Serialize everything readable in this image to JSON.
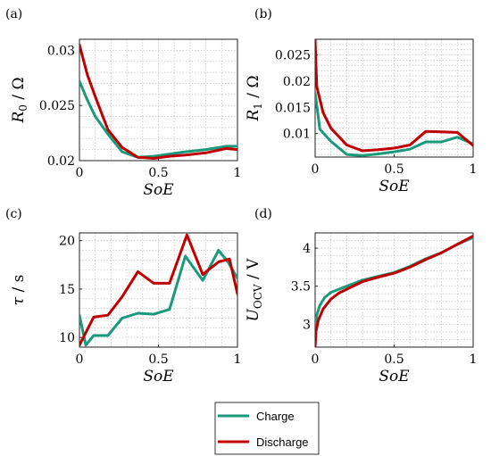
{
  "colors": {
    "charge": "#1a9a7a",
    "discharge": "#c00000",
    "grid": "#bbbbbb"
  },
  "legend": {
    "placement": "bottom-center",
    "entries": [
      {
        "name": "Charge",
        "color": "#1a9a7a"
      },
      {
        "name": "Discharge",
        "color": "#c00000"
      }
    ]
  },
  "chart_data": [
    {
      "panel": "(a)",
      "type": "line",
      "xlabel": "SoE",
      "ylabel_main": "R",
      "ylabel_sub": "0",
      "ylabel_unit": " / Ω",
      "xlim": [
        0,
        1
      ],
      "ylim": [
        0.02,
        0.031
      ],
      "grid": true,
      "xticks": [
        {
          "v": 0,
          "t": "0"
        },
        {
          "v": 0.5,
          "t": "0.5"
        },
        {
          "v": 1,
          "t": "1"
        }
      ],
      "yticks": [
        {
          "v": 0.02,
          "t": "0.02"
        },
        {
          "v": 0.025,
          "t": "0.025"
        },
        {
          "v": 0.03,
          "t": "0.03"
        }
      ],
      "series": [
        {
          "name": "Charge",
          "x": [
            0,
            0.05,
            0.1,
            0.18,
            0.27,
            0.37,
            0.47,
            0.57,
            0.67,
            0.8,
            0.93,
            1.0
          ],
          "y": [
            0.0272,
            0.0255,
            0.024,
            0.0224,
            0.0208,
            0.0203,
            0.0204,
            0.0206,
            0.0208,
            0.021,
            0.0213,
            0.0213
          ]
        },
        {
          "name": "Discharge",
          "x": [
            0,
            0.05,
            0.1,
            0.18,
            0.27,
            0.37,
            0.47,
            0.57,
            0.67,
            0.8,
            0.93,
            1.0
          ],
          "y": [
            0.0305,
            0.0278,
            0.0258,
            0.0228,
            0.0212,
            0.0203,
            0.0202,
            0.0204,
            0.0205,
            0.0207,
            0.0211,
            0.021
          ]
        }
      ]
    },
    {
      "panel": "(b)",
      "type": "line",
      "xlabel": "SoE",
      "ylabel_main": "R",
      "ylabel_sub": "1",
      "ylabel_unit": " / Ω",
      "xlim": [
        0,
        1
      ],
      "ylim": [
        0.0055,
        0.028
      ],
      "grid": true,
      "xticks": [
        {
          "v": 0,
          "t": "0"
        },
        {
          "v": 0.5,
          "t": "0.5"
        },
        {
          "v": 1,
          "t": "1"
        }
      ],
      "yticks": [
        {
          "v": 0.01,
          "t": "0.01"
        },
        {
          "v": 0.015,
          "t": "0.015"
        },
        {
          "v": 0.02,
          "t": "0.02"
        },
        {
          "v": 0.025,
          "t": "0.025"
        }
      ],
      "series": [
        {
          "name": "Charge",
          "x": [
            0,
            0.03,
            0.1,
            0.2,
            0.3,
            0.4,
            0.5,
            0.6,
            0.7,
            0.8,
            0.9,
            1.0
          ],
          "y": [
            0.0178,
            0.0108,
            0.0085,
            0.006,
            0.0058,
            0.0061,
            0.0065,
            0.007,
            0.0084,
            0.0084,
            0.0093,
            0.008
          ]
        },
        {
          "name": "Discharge",
          "x": [
            0,
            0.01,
            0.05,
            0.1,
            0.2,
            0.3,
            0.4,
            0.5,
            0.6,
            0.7,
            0.8,
            0.9,
            1.0
          ],
          "y": [
            0.028,
            0.019,
            0.014,
            0.011,
            0.0078,
            0.0067,
            0.0069,
            0.0072,
            0.0078,
            0.0104,
            0.0103,
            0.0102,
            0.0077
          ]
        }
      ]
    },
    {
      "panel": "(c)",
      "type": "line",
      "xlabel": "SoE",
      "ylabel_main": "τ",
      "ylabel_sub": "",
      "ylabel_unit": " / s",
      "xlim": [
        0,
        1
      ],
      "ylim": [
        9,
        20.8
      ],
      "grid": true,
      "xticks": [
        {
          "v": 0,
          "t": "0"
        },
        {
          "v": 0.5,
          "t": "0.5"
        },
        {
          "v": 1,
          "t": "1"
        }
      ],
      "yticks": [
        {
          "v": 10,
          "t": "10"
        },
        {
          "v": 15,
          "t": "15"
        },
        {
          "v": 20,
          "t": "20"
        }
      ],
      "series": [
        {
          "name": "Charge",
          "x": [
            0,
            0.04,
            0.09,
            0.18,
            0.27,
            0.37,
            0.47,
            0.57,
            0.67,
            0.78,
            0.88,
            0.94,
            1.0
          ],
          "y": [
            12.3,
            9.2,
            10.2,
            10.2,
            12.0,
            12.5,
            12.4,
            12.9,
            18.4,
            15.9,
            19.0,
            17.8,
            16.1
          ]
        },
        {
          "name": "Discharge",
          "x": [
            0,
            0.09,
            0.18,
            0.27,
            0.37,
            0.47,
            0.57,
            0.68,
            0.78,
            0.88,
            0.95,
            1.0
          ],
          "y": [
            9.2,
            12.1,
            12.3,
            14.2,
            16.8,
            15.6,
            15.6,
            20.6,
            16.5,
            17.8,
            18.1,
            14.5
          ]
        }
      ]
    },
    {
      "panel": "(d)",
      "type": "line",
      "xlabel": "SoE",
      "ylabel_main": "U",
      "ylabel_sub": "OCV",
      "ylabel_unit": " / V",
      "xlim": [
        0,
        1
      ],
      "ylim": [
        2.7,
        4.2
      ],
      "grid": true,
      "xticks": [
        {
          "v": 0,
          "t": "0"
        },
        {
          "v": 0.5,
          "t": "0.5"
        },
        {
          "v": 1,
          "t": "1"
        }
      ],
      "yticks": [
        {
          "v": 3,
          "t": "3"
        },
        {
          "v": 3.5,
          "t": "3.5"
        },
        {
          "v": 4,
          "t": "4"
        }
      ],
      "series": [
        {
          "name": "Charge",
          "x": [
            0,
            0.01,
            0.03,
            0.06,
            0.1,
            0.2,
            0.3,
            0.4,
            0.5,
            0.6,
            0.7,
            0.8,
            0.9,
            1.0
          ],
          "y": [
            2.95,
            3.12,
            3.25,
            3.35,
            3.42,
            3.5,
            3.58,
            3.63,
            3.68,
            3.76,
            3.86,
            3.94,
            4.05,
            4.14
          ]
        },
        {
          "name": "Discharge",
          "x": [
            0,
            0.005,
            0.02,
            0.05,
            0.1,
            0.15,
            0.2,
            0.3,
            0.4,
            0.5,
            0.6,
            0.7,
            0.8,
            0.9,
            1.0
          ],
          "y": [
            2.7,
            2.9,
            3.05,
            3.2,
            3.33,
            3.41,
            3.46,
            3.56,
            3.62,
            3.67,
            3.75,
            3.85,
            3.94,
            4.05,
            4.16
          ]
        }
      ]
    }
  ]
}
